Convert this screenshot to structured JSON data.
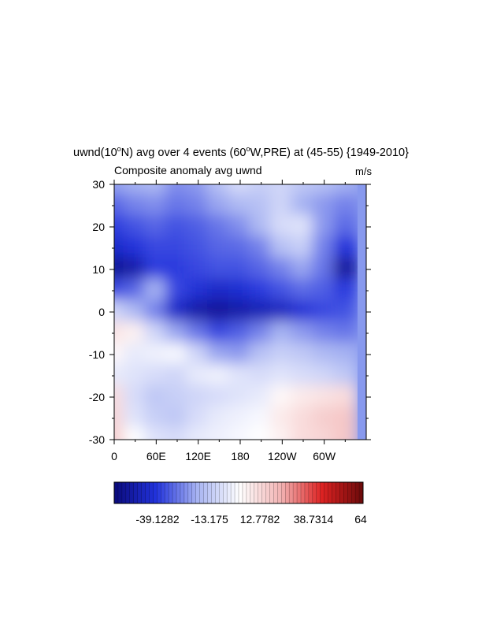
{
  "figure": {
    "title_parts": [
      "uwnd(10",
      "o",
      "N) avg over 4 events (60",
      "o",
      "W,PRE) at (45-55) {1949-2010}"
    ],
    "left_subtitle": "Composite anomaly avg uwnd",
    "units": "m/s"
  },
  "colors": {
    "negative_strong": "#0a0a7a",
    "negative": "#2233dd",
    "negative_light": "#a8b4f2",
    "neutral": "#ffffff",
    "positive_light": "#f2b4b4",
    "positive": "#dd2222",
    "positive_strong": "#6a0a0a"
  },
  "chart_data": {
    "type": "heatmap",
    "x_ticks": [
      "0",
      "60E",
      "120E",
      "180",
      "120W",
      "60W"
    ],
    "y_ticks": [
      "30",
      "20",
      "10",
      "0",
      "-10",
      "-20",
      "-30"
    ],
    "colorbar_labels": [
      "-39.1282",
      "-13.175",
      "12.7782",
      "38.7314",
      "64"
    ],
    "colorbar_range": [
      -65,
      64
    ],
    "colorbar_levels": 64,
    "x_range_deg_east": [
      0,
      330
    ],
    "y_range_deg": [
      -30,
      30
    ],
    "x_grid_deg_east": [
      0,
      30,
      60,
      90,
      120,
      150,
      180,
      210,
      240,
      270,
      300,
      330
    ],
    "y_grid_deg": [
      30,
      25,
      20,
      15,
      10,
      5,
      0,
      -5,
      -10,
      -15,
      -20,
      -25,
      -30
    ],
    "values": [
      [
        -25,
        -22,
        -20,
        -28,
        -26,
        -18,
        -10,
        -14,
        -12,
        -16,
        -18,
        -22
      ],
      [
        -35,
        -30,
        -28,
        -32,
        -30,
        -24,
        -20,
        -18,
        -12,
        -22,
        -26,
        -30
      ],
      [
        -42,
        -38,
        -35,
        -38,
        -36,
        -32,
        -28,
        -20,
        -10,
        -8,
        -26,
        -34
      ],
      [
        -48,
        -44,
        -40,
        -40,
        -38,
        -35,
        -34,
        -30,
        -18,
        -14,
        -30,
        -44
      ],
      [
        -60,
        -55,
        -42,
        -42,
        -40,
        -38,
        -38,
        -35,
        -30,
        -24,
        -32,
        -58
      ],
      [
        -40,
        -35,
        -22,
        -40,
        -45,
        -48,
        -46,
        -42,
        -38,
        -34,
        -36,
        -42
      ],
      [
        -12,
        -20,
        -30,
        -48,
        -55,
        -58,
        -55,
        -52,
        -50,
        -45,
        -40,
        -38
      ],
      [
        8,
        4,
        -12,
        -24,
        -32,
        -40,
        -36,
        -30,
        -22,
        -26,
        -30,
        -32
      ],
      [
        2,
        -6,
        -4,
        -2,
        -12,
        -24,
        -26,
        -18,
        -14,
        -16,
        -20,
        -22
      ],
      [
        -6,
        -8,
        -10,
        -12,
        -6,
        -4,
        -8,
        -10,
        -8,
        -10,
        -12,
        -16
      ],
      [
        10,
        -10,
        -16,
        -14,
        -12,
        -10,
        -8,
        -6,
        2,
        6,
        8,
        10
      ],
      [
        12,
        -8,
        -14,
        -16,
        -10,
        -6,
        -4,
        -2,
        6,
        10,
        14,
        16
      ],
      [
        14,
        0,
        -8,
        -10,
        -6,
        -4,
        -2,
        0,
        4,
        10,
        12,
        16
      ]
    ]
  }
}
